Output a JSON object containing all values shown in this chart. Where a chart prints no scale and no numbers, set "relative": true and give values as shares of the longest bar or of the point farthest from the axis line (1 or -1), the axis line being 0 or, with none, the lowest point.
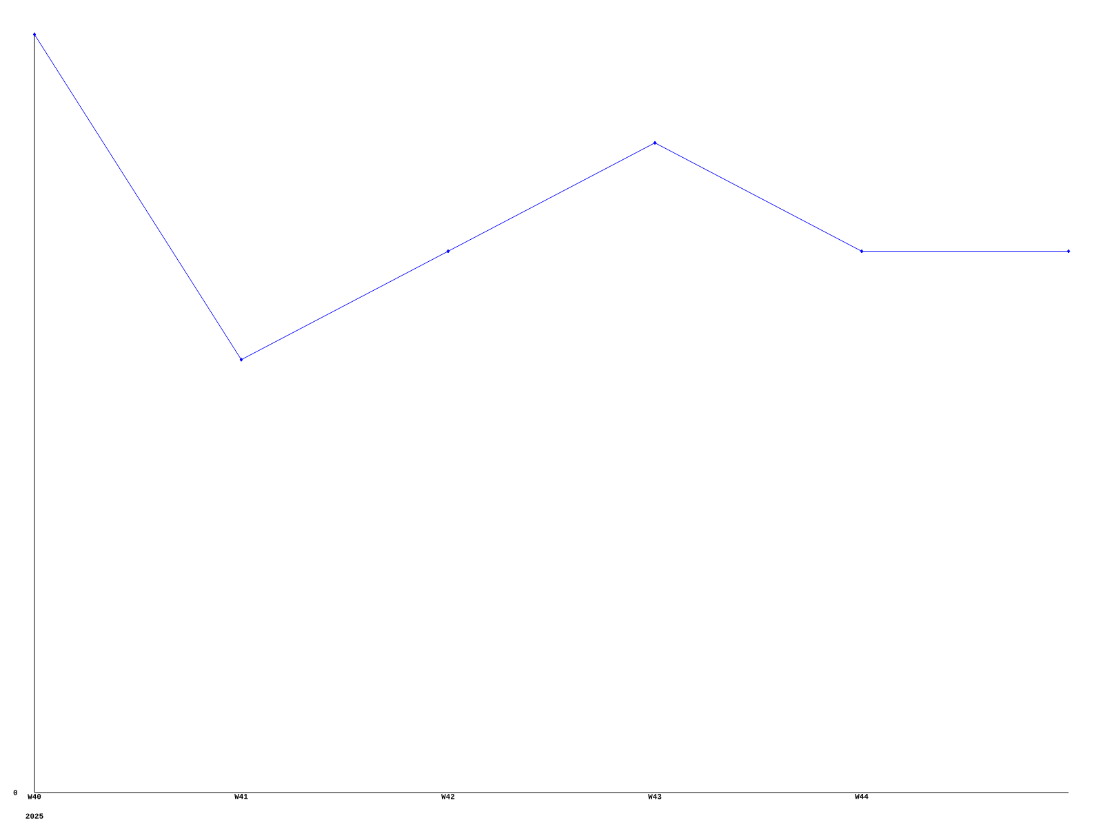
{
  "chart_data": {
    "type": "line",
    "relative": true,
    "categories": [
      "W40",
      "W41",
      "W42",
      "W43",
      "W44",
      null
    ],
    "series": [
      {
        "color": "#0000ff",
        "values": [
          1,
          0.571,
          0.714,
          0.857,
          0.714,
          0.714
        ]
      }
    ],
    "marker": "diamond",
    "line_style": "solid",
    "annotations": [
      "0",
      "2025"
    ]
  }
}
